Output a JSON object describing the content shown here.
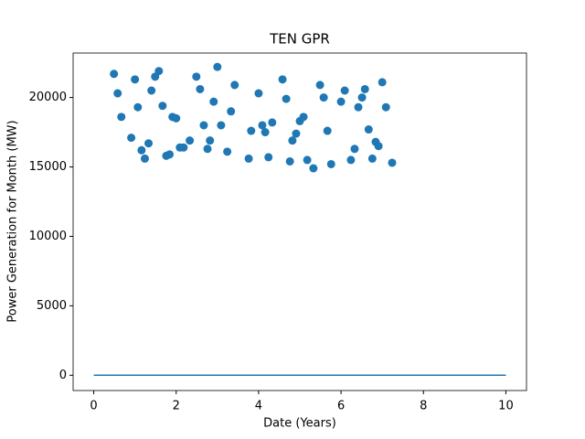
{
  "chart_data": {
    "type": "scatter",
    "title": "TEN GPR",
    "x_label": "Date (Years)",
    "y_label": "Power Generation for Month (MW)",
    "xlim": [
      -0.5,
      10.5
    ],
    "ylim": [
      -1100,
      23200
    ],
    "xticks": [
      0,
      2,
      4,
      6,
      8,
      10
    ],
    "yticks": [
      0,
      5000,
      10000,
      15000,
      20000
    ],
    "series": [
      {
        "type": "scatter",
        "color": "#1f77b4",
        "x": [
          0.49,
          0.58,
          0.67,
          0.91,
          1.0,
          1.07,
          1.16,
          1.24,
          1.33,
          1.4,
          1.49,
          1.58,
          1.67,
          1.76,
          1.84,
          1.91,
          2.0,
          2.09,
          2.18,
          2.33,
          2.49,
          2.58,
          2.67,
          2.76,
          2.82,
          2.91,
          3.0,
          3.09,
          3.24,
          3.33,
          3.42,
          3.76,
          3.82,
          4.0,
          4.09,
          4.16,
          4.24,
          4.33,
          4.58,
          4.67,
          4.76,
          4.82,
          4.91,
          5.0,
          5.09,
          5.18,
          5.33,
          5.49,
          5.58,
          5.67,
          5.76,
          6.0,
          6.09,
          6.24,
          6.33,
          6.42,
          6.51,
          6.58,
          6.67,
          6.76,
          6.84,
          6.91,
          7.0,
          7.09,
          7.24
        ],
        "values": [
          21700,
          20300,
          18600,
          17100,
          21300,
          19300,
          16200,
          15600,
          16700,
          20500,
          21500,
          21900,
          19400,
          15800,
          15900,
          18600,
          18500,
          16400,
          16400,
          16900,
          21500,
          20600,
          18000,
          16300,
          16900,
          19700,
          22200,
          18000,
          16100,
          19000,
          20900,
          15600,
          17600,
          20300,
          18000,
          17500,
          15700,
          18200,
          21300,
          19900,
          15400,
          16900,
          17400,
          18300,
          18600,
          15500,
          14900,
          20900,
          20000,
          17600,
          15200,
          19700,
          20500,
          15500,
          16300,
          19300,
          20000,
          20600,
          17700,
          15600,
          16800,
          16500,
          21100,
          19300,
          15300
        ]
      },
      {
        "type": "line",
        "color": "#1f77b4",
        "x": [
          0,
          10
        ],
        "values": [
          0,
          0
        ]
      }
    ]
  }
}
